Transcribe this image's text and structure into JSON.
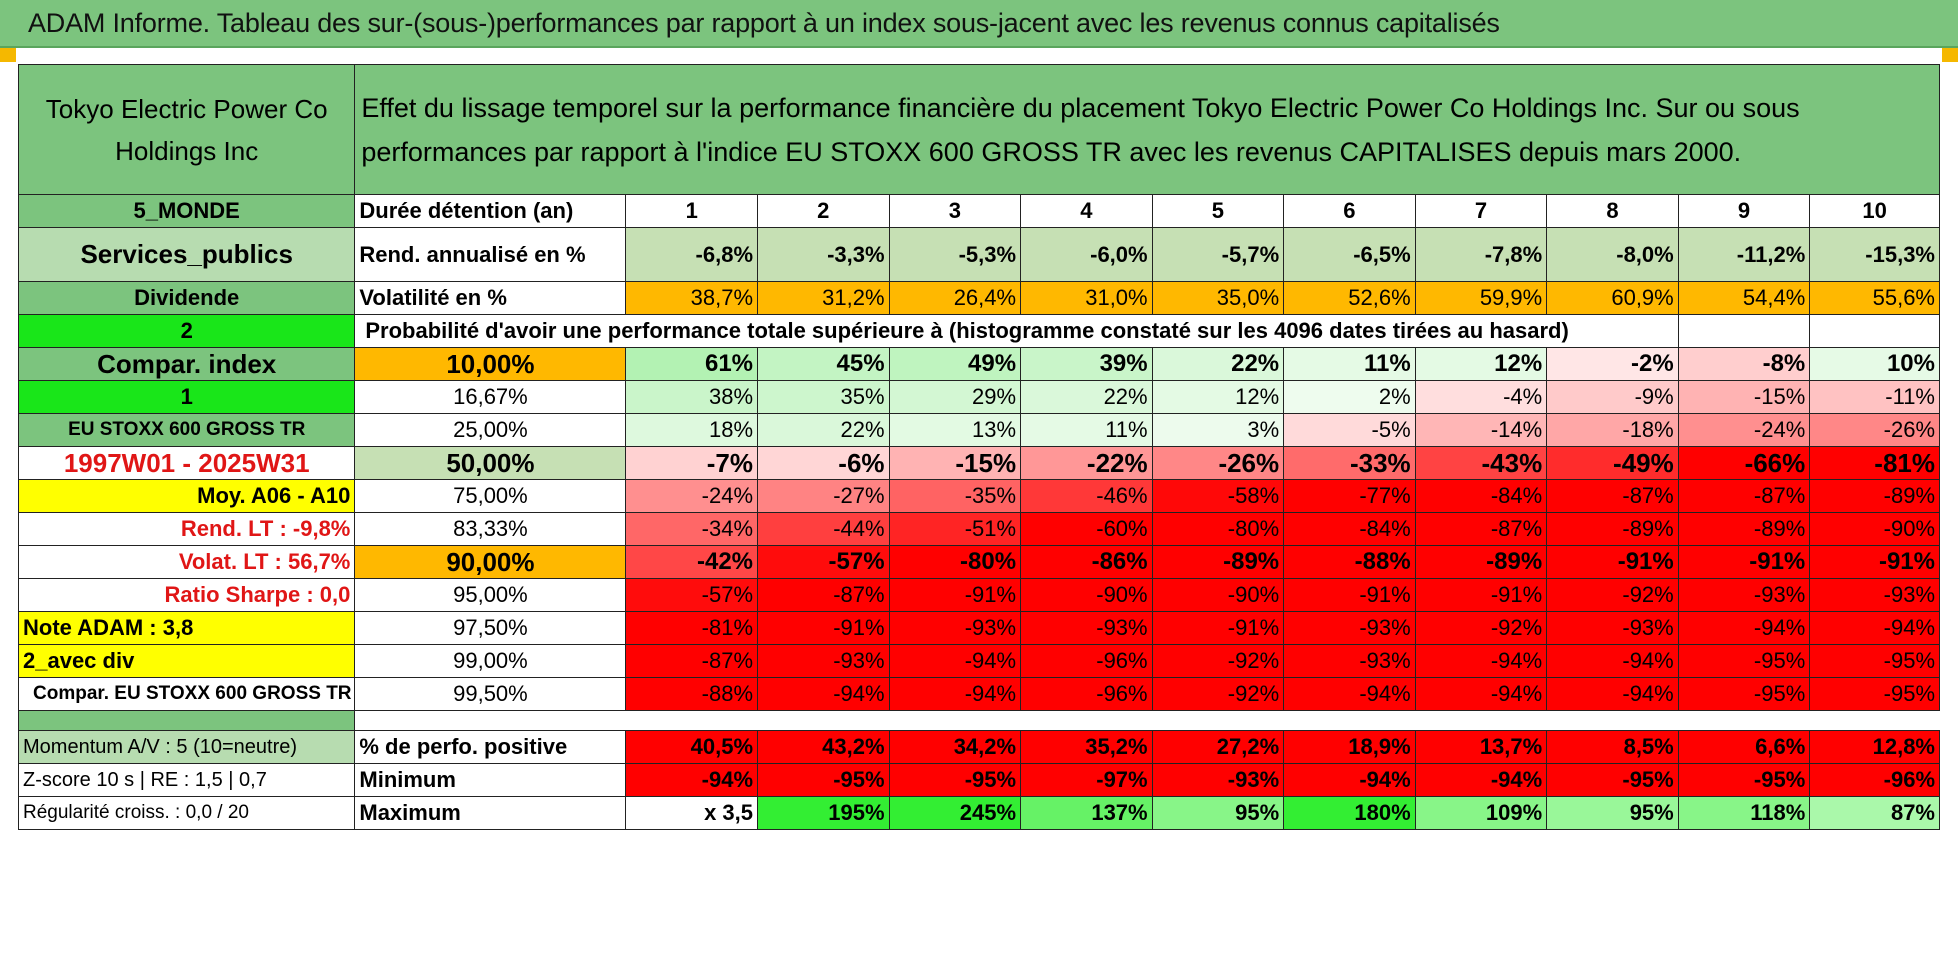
{
  "title": "ADAM Informe. Tableau des sur-(sous-)performances par rapport à un index sous-jacent avec les revenus connus capitalisés",
  "company": "Tokyo Electric Power Co Holdings Inc",
  "description": "Effet du lissage temporel sur la performance financière du placement Tokyo Electric Power Co Holdings Inc. Sur ou sous performances par rapport à l'indice EU STOXX 600 GROSS TR avec les revenus CAPITALISES depuis mars 2000.",
  "left": {
    "region": "5_MONDE",
    "sector": "Services_publics",
    "dividend": "Dividende",
    "num2": "2",
    "compar_index": "Compar. index",
    "num1": "1",
    "index_name": "EU STOXX 600 GROSS TR",
    "period": "1997W01 - 2025W31",
    "moy": "Moy. A06 - A10",
    "rend_lt": "Rend. LT :    -9,8%",
    "volat_lt": "Volat. LT :    56,7%",
    "sharpe": "Ratio Sharpe :    0,0",
    "note": "Note ADAM : 3,8",
    "avec_div": "2_avec div",
    "compar_full": "Compar. EU STOXX 600 GROSS TR",
    "momentum": "Momentum A/V : 5 (10=neutre)",
    "zscore": "Z-score 10 s | RE : 1,5 | 0,7",
    "regularite": "Régularité croiss. : 0,0 / 20"
  },
  "duree_label": "Durée détention (an)",
  "years": [
    "1",
    "2",
    "3",
    "4",
    "5",
    "6",
    "7",
    "8",
    "9",
    "10"
  ],
  "rend_label": "Rend. annualisé en %",
  "rend": [
    "-6,8%",
    "-3,3%",
    "-5,3%",
    "-6,0%",
    "-5,7%",
    "-6,5%",
    "-7,8%",
    "-8,0%",
    "-11,2%",
    "-15,3%"
  ],
  "vol_label": "Volatilité en %",
  "vol": [
    "38,7%",
    "31,2%",
    "26,4%",
    "31,0%",
    "35,0%",
    "52,6%",
    "59,9%",
    "60,9%",
    "54,4%",
    "55,6%"
  ],
  "proba_label": "Probabilité d'avoir une performance totale supérieure à (histogramme constaté sur les 4096 dates tirées au hasard)",
  "quantiles": [
    {
      "p": "10,00%",
      "v": [
        "61%",
        "45%",
        "49%",
        "39%",
        "22%",
        "11%",
        "12%",
        "-2%",
        "-8%",
        "10%"
      ]
    },
    {
      "p": "16,67%",
      "v": [
        "38%",
        "35%",
        "29%",
        "22%",
        "12%",
        "2%",
        "-4%",
        "-9%",
        "-15%",
        "-11%"
      ]
    },
    {
      "p": "25,00%",
      "v": [
        "18%",
        "22%",
        "13%",
        "11%",
        "3%",
        "-5%",
        "-14%",
        "-18%",
        "-24%",
        "-26%"
      ]
    },
    {
      "p": "50,00%",
      "v": [
        "-7%",
        "-6%",
        "-15%",
        "-22%",
        "-26%",
        "-33%",
        "-43%",
        "-49%",
        "-66%",
        "-81%"
      ]
    },
    {
      "p": "75,00%",
      "v": [
        "-24%",
        "-27%",
        "-35%",
        "-46%",
        "-58%",
        "-77%",
        "-84%",
        "-87%",
        "-87%",
        "-89%"
      ]
    },
    {
      "p": "83,33%",
      "v": [
        "-34%",
        "-44%",
        "-51%",
        "-60%",
        "-80%",
        "-84%",
        "-87%",
        "-89%",
        "-89%",
        "-90%"
      ]
    },
    {
      "p": "90,00%",
      "v": [
        "-42%",
        "-57%",
        "-80%",
        "-86%",
        "-89%",
        "-88%",
        "-89%",
        "-91%",
        "-91%",
        "-91%"
      ]
    },
    {
      "p": "95,00%",
      "v": [
        "-57%",
        "-87%",
        "-91%",
        "-90%",
        "-90%",
        "-91%",
        "-91%",
        "-92%",
        "-93%",
        "-93%"
      ]
    },
    {
      "p": "97,50%",
      "v": [
        "-81%",
        "-91%",
        "-93%",
        "-93%",
        "-91%",
        "-93%",
        "-92%",
        "-93%",
        "-94%",
        "-94%"
      ]
    },
    {
      "p": "99,00%",
      "v": [
        "-87%",
        "-93%",
        "-94%",
        "-96%",
        "-92%",
        "-93%",
        "-94%",
        "-94%",
        "-95%",
        "-95%"
      ]
    },
    {
      "p": "99,50%",
      "v": [
        "-88%",
        "-94%",
        "-94%",
        "-96%",
        "-92%",
        "-94%",
        "-94%",
        "-94%",
        "-95%",
        "-95%"
      ]
    }
  ],
  "perfpos_label": "% de perfo. positive",
  "perfpos": [
    "40,5%",
    "43,2%",
    "34,2%",
    "35,2%",
    "27,2%",
    "18,9%",
    "13,7%",
    "8,5%",
    "6,6%",
    "12,8%"
  ],
  "min_label": "Minimum",
  "min": [
    "-94%",
    "-95%",
    "-95%",
    "-97%",
    "-93%",
    "-94%",
    "-94%",
    "-95%",
    "-95%",
    "-96%"
  ],
  "max_label": "Maximum",
  "max": [
    "x 3,5",
    "195%",
    "245%",
    "137%",
    "95%",
    "180%",
    "109%",
    "95%",
    "118%",
    "87%"
  ],
  "colors": {
    "header_green": "#7cc47e",
    "lime": "#19e619",
    "yellow": "#ffff00",
    "orange": "#ffb800",
    "strong_red": "#ff0000"
  }
}
